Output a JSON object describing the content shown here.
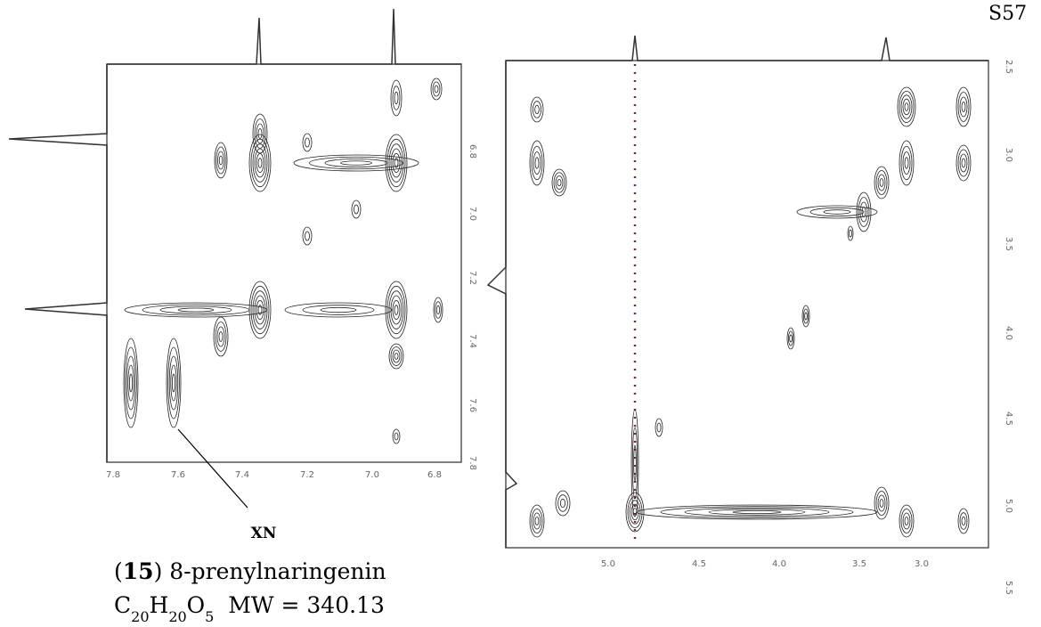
{
  "page_label": "S57",
  "left_spectrum": {
    "x_ticks": [
      "7.8",
      "7.6",
      "7.4",
      "7.2",
      "7.0",
      "6.8"
    ],
    "y_ticks": [
      "6.8",
      "7.0",
      "7.2",
      "7.4",
      "7.6",
      "7.8"
    ],
    "annotation": "XN"
  },
  "right_spectrum": {
    "x_ticks": [
      "5.0",
      "4.5",
      "4.0",
      "3.5",
      "3.0"
    ],
    "y_ticks": [
      "2.5",
      "3.0",
      "3.5",
      "4.0",
      "4.5",
      "5.0",
      "5.5"
    ]
  },
  "caption": {
    "name_parts": [
      {
        "text": "("
      },
      {
        "text": "15",
        "bold": true
      },
      {
        "text": ") 8-prenylnaringenin"
      }
    ],
    "formula_parts": [
      {
        "text": "C"
      },
      {
        "text": "20",
        "sub": true
      },
      {
        "text": "H"
      },
      {
        "text": "20",
        "sub": true
      },
      {
        "text": "O"
      },
      {
        "text": "5",
        "sub": true
      },
      {
        "text": "  MW = 340.13"
      }
    ]
  }
}
